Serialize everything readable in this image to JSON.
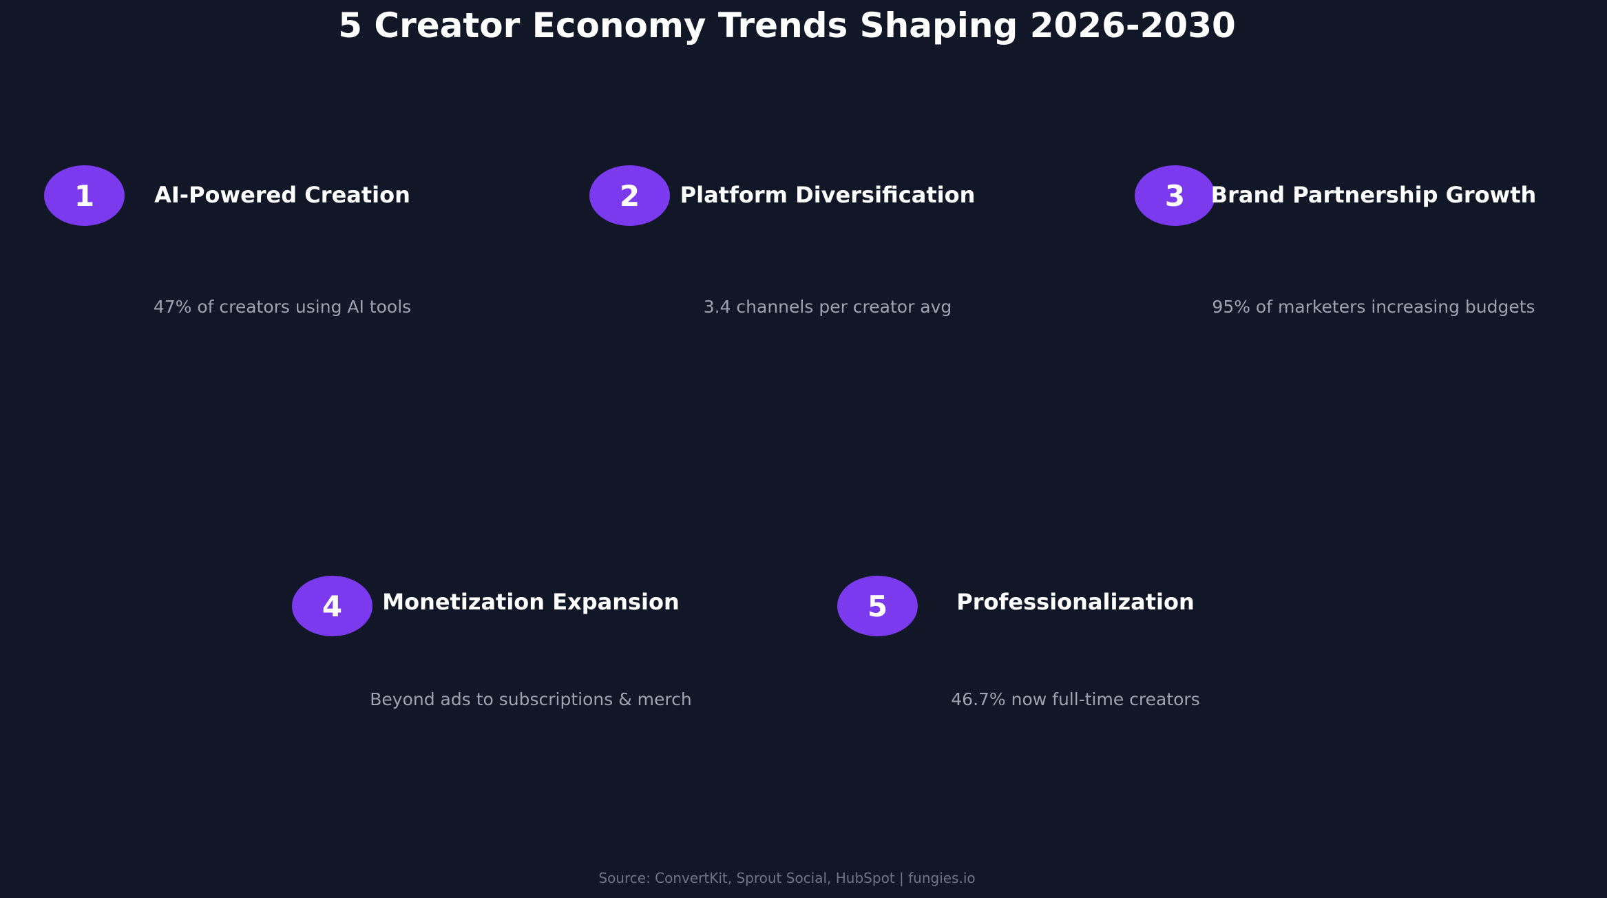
{
  "title": "5 Creator Economy Trends Shaping 2026-2030",
  "colors": {
    "background": "#111727",
    "badge": "#7b3aed",
    "heading": "#ffffff",
    "stat": "#9ea3b0",
    "source": "#6e7486"
  },
  "trends": [
    {
      "number": "1",
      "title": "AI-Powered Creation",
      "stat": "47% of creators using AI tools"
    },
    {
      "number": "2",
      "title": "Platform Diversification",
      "stat": "3.4 channels per creator avg"
    },
    {
      "number": "3",
      "title": "Brand Partnership Growth",
      "stat": "95% of marketers increasing budgets"
    },
    {
      "number": "4",
      "title": "Monetization Expansion",
      "stat": "Beyond ads to subscriptions & merch"
    },
    {
      "number": "5",
      "title": "Professionalization",
      "stat": "46.7% now full-time creators"
    }
  ],
  "source": "Source: ConvertKit, Sprout Social, HubSpot | fungies.io"
}
